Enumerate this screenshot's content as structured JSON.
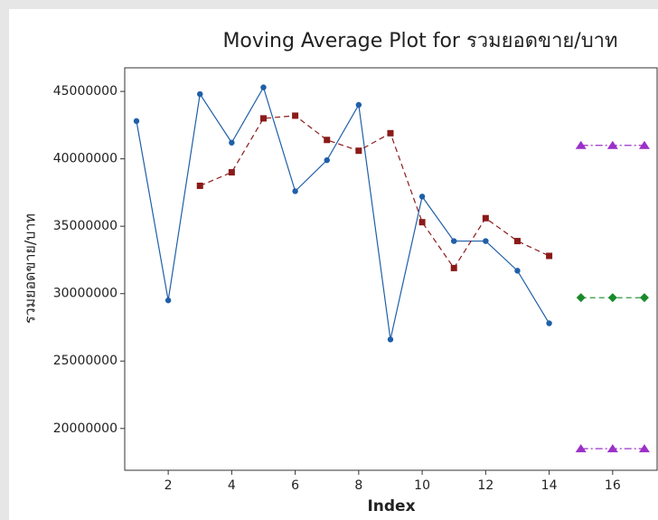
{
  "chart_data": {
    "type": "line",
    "title": "Moving Average Plot for รวมยอดขาย/บาท",
    "xlabel": "Index",
    "ylabel": "รวมยอดขาย/บาท",
    "x": [
      1,
      2,
      3,
      4,
      5,
      6,
      7,
      8,
      9,
      10,
      11,
      12,
      13,
      14,
      15,
      16,
      17
    ],
    "series": [
      {
        "color": "#1f5fa8",
        "marker": "circle",
        "dash": "none",
        "values": [
          42800000,
          29500000,
          44800000,
          41200000,
          45300000,
          37600000,
          39900000,
          44000000,
          26600000,
          37200000,
          33900000,
          33900000,
          31700000,
          27800000,
          null,
          null,
          null
        ]
      },
      {
        "color": "#8b1a1a",
        "marker": "square",
        "dash": "6 4",
        "values": [
          null,
          null,
          38000000,
          39000000,
          43000000,
          43200000,
          41400000,
          40600000,
          41900000,
          35300000,
          31900000,
          35600000,
          33900000,
          32800000,
          null,
          null,
          null
        ]
      },
      {
        "color": "#1a8a2a",
        "marker": "diamond",
        "dash": "6 4",
        "values": [
          null,
          null,
          null,
          null,
          null,
          null,
          null,
          null,
          null,
          null,
          null,
          null,
          null,
          null,
          29700000,
          29700000,
          29700000
        ]
      },
      {
        "color": "#9b30c8",
        "marker": "triangle",
        "dash": "8 3 2 3",
        "values": [
          null,
          null,
          null,
          null,
          null,
          null,
          null,
          null,
          null,
          null,
          null,
          null,
          null,
          null,
          41000000,
          41000000,
          41000000
        ]
      },
      {
        "color": "#9b30c8",
        "marker": "triangle",
        "dash": "8 3 2 3",
        "values": [
          null,
          null,
          null,
          null,
          null,
          null,
          null,
          null,
          null,
          null,
          null,
          null,
          null,
          null,
          18500000,
          18500000,
          18500000
        ]
      }
    ],
    "xlim": [
      0.63,
      17.4
    ],
    "xticks": [
      2,
      4,
      6,
      8,
      10,
      12,
      14,
      16
    ],
    "ylim": [
      16900000,
      46750000
    ],
    "yticks": [
      20000000,
      25000000,
      30000000,
      35000000,
      40000000,
      45000000
    ]
  }
}
